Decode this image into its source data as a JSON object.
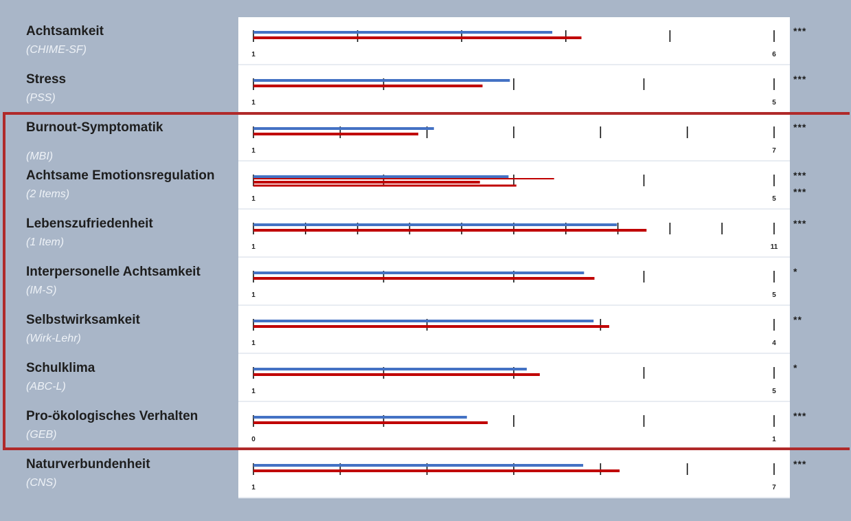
{
  "chart_data": {
    "type": "bar",
    "series": [
      {
        "color": "#4472c4"
      },
      {
        "color": "#c00000"
      }
    ],
    "rows": [
      {
        "name": "Achtsamkeit",
        "instrument": "(CHIME-SF)",
        "min": 1,
        "max": 6,
        "values": [
          3.87,
          4.15
        ],
        "sig": [
          "***"
        ]
      },
      {
        "name": "Stress",
        "instrument": "(PSS)",
        "min": 1,
        "max": 5,
        "values": [
          2.97,
          2.76
        ],
        "sig": [
          "***"
        ]
      },
      {
        "name": "Burnout-Symptomatik",
        "instrument": "(MBI)",
        "min": 1,
        "max": 7,
        "values": [
          3.08,
          2.9
        ],
        "sig": [
          "***"
        ]
      },
      {
        "name": "Achtsame Emotionsregulation",
        "instrument": "(2 Items)",
        "min": 1,
        "max": 5,
        "values": [
          2.96,
          2.74
        ],
        "values2": [
          3.31,
          3.02
        ],
        "sig": [
          "***",
          "***"
        ]
      },
      {
        "name": "Lebenszufriedenheit",
        "instrument": "(1 Item)",
        "min": 1,
        "max": 11,
        "values": [
          7.98,
          8.55
        ],
        "sig": [
          "***"
        ]
      },
      {
        "name": "Interpersonelle Achtsamkeit",
        "instrument": "(IM-S)",
        "min": 1,
        "max": 5,
        "values": [
          3.54,
          3.62
        ],
        "sig": [
          "*"
        ]
      },
      {
        "name": "Selbstwirksamkeit",
        "instrument": "(Wirk-Lehr)",
        "min": 1,
        "max": 4,
        "values": [
          2.96,
          3.05
        ],
        "sig": [
          "**"
        ]
      },
      {
        "name": "Schulklima",
        "instrument": "(ABC-L)",
        "min": 1,
        "max": 5,
        "values": [
          3.1,
          3.2
        ],
        "sig": [
          "*"
        ]
      },
      {
        "name": "Pro-ökologisches Verhalten",
        "instrument": "(GEB)",
        "min": 0,
        "max": 1,
        "values": [
          0.41,
          0.45
        ],
        "sig": [
          "***"
        ]
      },
      {
        "name": "Naturverbundenheit",
        "instrument": "(CNS)",
        "min": 1,
        "max": 7,
        "values": [
          4.8,
          5.22
        ],
        "sig": [
          "***"
        ]
      }
    ],
    "highlight_box_color": "#b02a2a"
  }
}
